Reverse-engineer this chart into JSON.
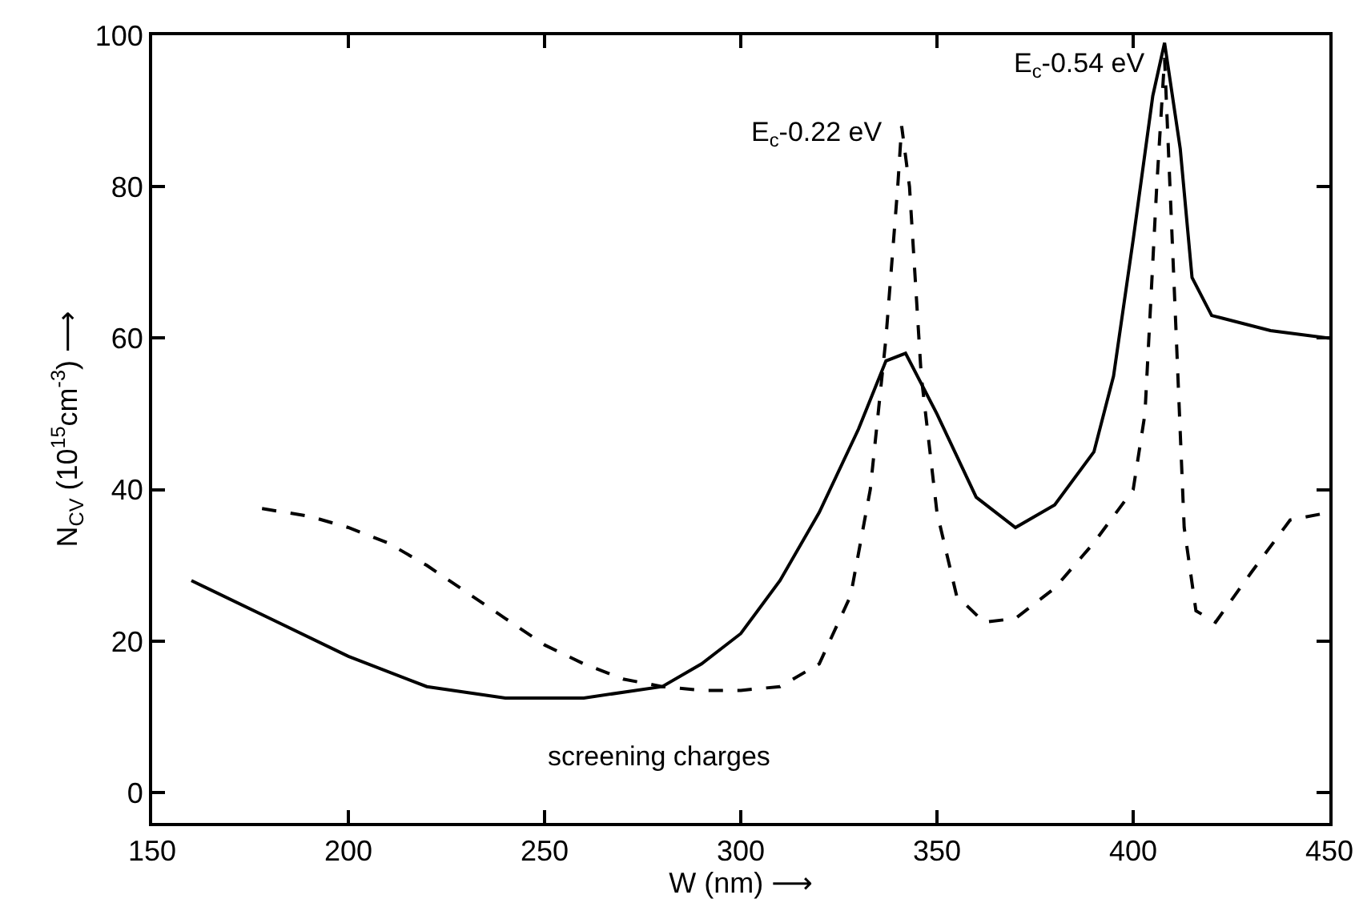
{
  "chart_data": {
    "type": "line",
    "xlabel": "W (nm) ⟶",
    "ylabel": "N$_{CV}$ (10$^{15}$cm$^{-3}$) ⟶",
    "xlim": [
      150,
      450
    ],
    "xticks": [
      150,
      200,
      250,
      300,
      350,
      400,
      450
    ],
    "ylim": [
      -4,
      100
    ],
    "yticks": [
      0,
      20,
      40,
      60,
      80,
      100
    ],
    "grid": false,
    "marker": "none",
    "series": [
      {
        "color": "#000000",
        "line_style": "solid",
        "x": [
          160,
          180,
          200,
          220,
          240,
          260,
          280,
          290,
          300,
          310,
          320,
          330,
          337,
          342,
          350,
          360,
          370,
          380,
          390,
          395,
          400,
          405,
          408,
          412,
          415,
          420,
          435,
          450
        ],
        "values": [
          28,
          23,
          18,
          14,
          12.5,
          12.5,
          14,
          17,
          21,
          28,
          37,
          48,
          57,
          58,
          50,
          39,
          35,
          38,
          45,
          55,
          73,
          92,
          99,
          85,
          68,
          63,
          61,
          60
        ]
      },
      {
        "color": "#000000",
        "line_style": "dashed",
        "x": [
          178,
          190,
          200,
          210,
          220,
          230,
          240,
          250,
          260,
          270,
          280,
          290,
          300,
          310,
          320,
          328,
          333,
          337,
          340,
          341,
          343,
          346,
          350,
          355,
          362,
          370,
          380,
          390,
          400,
          403,
          406,
          408,
          411,
          413,
          416,
          421,
          430,
          440,
          450
        ],
        "values": [
          37.5,
          36.5,
          35,
          33,
          30,
          26.5,
          23,
          19.5,
          17,
          15,
          14,
          13.5,
          13.5,
          14,
          17,
          26,
          40,
          60,
          80,
          88,
          80,
          55,
          37,
          26,
          22.5,
          23,
          27,
          33,
          40,
          50,
          80,
          97,
          60,
          35,
          24,
          22.5,
          29,
          36,
          37
        ]
      }
    ],
    "annotations": [
      {
        "text": "E$_{c}$-0.22 eV",
        "x": 341,
        "y": 88
      },
      {
        "text": "E$_{c}$-0.54 eV",
        "x": 408,
        "y": 97
      },
      "screening charges"
    ]
  }
}
